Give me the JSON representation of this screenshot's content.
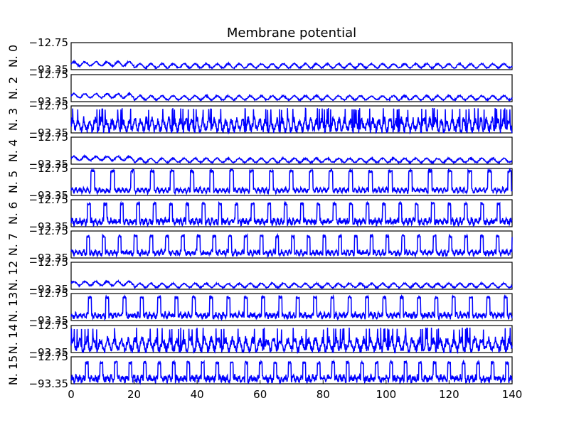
{
  "chart_data": {
    "type": "line",
    "title": "Membrane potential",
    "xlabel": "",
    "ylabel": "",
    "xlim": [
      0,
      140
    ],
    "ylim": [
      -93.35,
      -12.75
    ],
    "x_ticks": [
      "0",
      "20",
      "40",
      "60",
      "80",
      "100",
      "120",
      "140"
    ],
    "y_tick_labels": [
      "−12.75",
      "−93.35"
    ],
    "line_color": "#0000ff",
    "grid": false,
    "legend": "none",
    "series": [
      {
        "name": "N. 0",
        "pattern": "low",
        "spike_period": 3.5,
        "spike_height": -60,
        "jitter": 3
      },
      {
        "name": "N. 2",
        "pattern": "low",
        "spike_period": 3.5,
        "spike_height": -60,
        "jitter": 3
      },
      {
        "name": "N. 3",
        "pattern": "dense",
        "spike_period": 1.8,
        "spike_height": -22,
        "jitter": 12
      },
      {
        "name": "N. 4",
        "pattern": "low",
        "spike_period": 3.5,
        "spike_height": -60,
        "jitter": 3
      },
      {
        "name": "N. 5",
        "pattern": "bursting",
        "spike_period": 6.3,
        "spike_height": -20,
        "jitter": 5
      },
      {
        "name": "N. 6",
        "pattern": "bursting",
        "spike_period": 5.2,
        "spike_height": -25,
        "jitter": 8
      },
      {
        "name": "N. 7",
        "pattern": "bursting",
        "spike_period": 5.0,
        "spike_height": -28,
        "jitter": 6
      },
      {
        "name": "N. 12",
        "pattern": "low",
        "spike_period": 3.5,
        "spike_height": -60,
        "jitter": 3
      },
      {
        "name": "N. 13",
        "pattern": "bursting",
        "spike_period": 5.5,
        "spike_height": -24,
        "jitter": 7
      },
      {
        "name": "N. 14",
        "pattern": "dense",
        "spike_period": 2.2,
        "spike_height": -22,
        "jitter": 12
      },
      {
        "name": "N. 15",
        "pattern": "bursting",
        "spike_period": 4.6,
        "spike_height": -30,
        "jitter": 9
      }
    ]
  }
}
